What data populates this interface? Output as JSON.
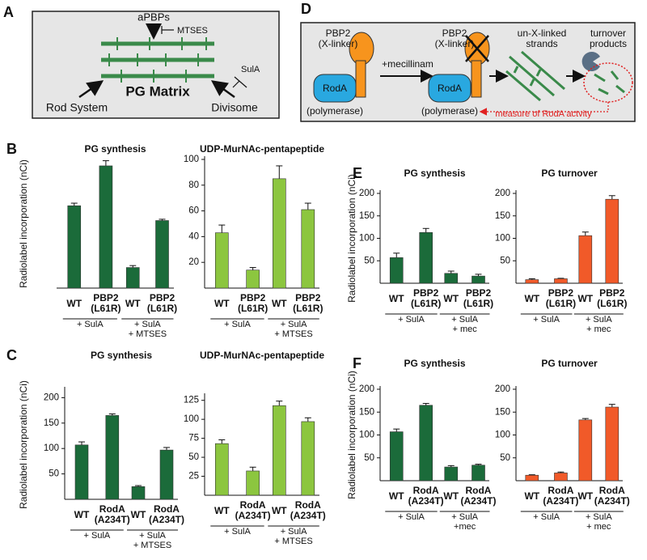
{
  "diagram_a": {
    "label": "A",
    "top": "aPBPs",
    "inhibitor_top": "MTSES",
    "center": "PG Matrix",
    "left": "Rod System",
    "right": "Divisome",
    "inhibitor_right": "SulA"
  },
  "diagram_d": {
    "label": "D",
    "pbp2_name_1": "PBP2",
    "pbp2_role_1": "(X-linker)",
    "roda_1": "RodA",
    "polymerase_1": "(polymerase)",
    "arrow_label": "+mecillinam",
    "pbp2_name_2": "PBP2",
    "pbp2_role_2": "(X-linker)",
    "roda_2": "RodA",
    "polymerase_2": "(polymerase)",
    "strands_1": "un-X-linked",
    "strands_2": "strands",
    "products_1": "turnover",
    "products_2": "products",
    "measure": "measure of RodA actvity"
  },
  "chart_data": [
    {
      "type": "bar",
      "panel": "B",
      "title": "PG synthesis",
      "ylabel": "Radiolabel incorporation (nCi)",
      "categories": [
        "WT",
        "PBP2\n(L61R)",
        "WT",
        "PBP2\n(L61R)"
      ],
      "group_labels": [
        "+ SulA",
        "+ SulA\n+ MTSES"
      ],
      "values": [
        128,
        190,
        32,
        105
      ],
      "errors": [
        4,
        8,
        3,
        2
      ],
      "color": "#1b6b3a",
      "ylim": [
        0,
        200
      ]
    },
    {
      "type": "bar",
      "title": "UDP-MurNAc-pentapeptide",
      "categories": [
        "WT",
        "PBP2\n(L61R)",
        "WT",
        "PBP2\n(L61R)"
      ],
      "group_labels": [
        "+ SulA",
        "+ SulA\n+ MTSES"
      ],
      "values": [
        43,
        14,
        85,
        61
      ],
      "errors": [
        6,
        2,
        10,
        5
      ],
      "color": "#8cc63f",
      "ylim": [
        0,
        100
      ],
      "yticks": [
        20,
        40,
        60,
        80,
        100
      ]
    },
    {
      "type": "bar",
      "panel": "C",
      "title": "PG synthesis",
      "ylabel": "Radiolabel incorporation (nCi)",
      "categories": [
        "WT",
        "RodA\n(A234T)",
        "WT",
        "RodA\n(A234T)"
      ],
      "group_labels": [
        "+ SulA",
        "+ SulA\n+ MTSES"
      ],
      "values": [
        107,
        165,
        25,
        97
      ],
      "errors": [
        6,
        3,
        2,
        5
      ],
      "color": "#1b6b3a",
      "ylim": [
        0,
        215
      ],
      "yticks": [
        50,
        100,
        150,
        200
      ]
    },
    {
      "type": "bar",
      "title": "UDP-MurNAc-pentapeptide",
      "categories": [
        "WT",
        "RodA\n(A234T)",
        "WT",
        "RodA\n(A234T)"
      ],
      "group_labels": [
        "+ SulA",
        "+ SulA\n+ MTSES"
      ],
      "values": [
        68,
        32,
        118,
        97
      ],
      "errors": [
        5,
        5,
        6,
        5
      ],
      "color": "#8cc63f",
      "ylim": [
        0,
        130
      ],
      "yticks": [
        25,
        50,
        75,
        100,
        125
      ]
    },
    {
      "type": "bar",
      "panel": "E",
      "title": "PG synthesis",
      "ylabel": "Radiolabel incorporation (nCi)",
      "categories": [
        "WT",
        "PBP2\n(L61R)",
        "WT",
        "PBP2\n(L61R)"
      ],
      "group_labels": [
        "+ SulA",
        "+ SulA\n+ mec"
      ],
      "values": [
        57,
        113,
        22,
        16
      ],
      "errors": [
        10,
        9,
        5,
        4
      ],
      "color": "#1b6b3a",
      "ylim": [
        0,
        200
      ],
      "yticks": [
        50,
        100,
        150,
        200
      ]
    },
    {
      "type": "bar",
      "title": "PG turnover",
      "categories": [
        "WT",
        "PBP2\n(L61R)",
        "WT",
        "PBP2\n(L61R)"
      ],
      "group_labels": [
        "+ SulA",
        "+ SulA\n+ mec"
      ],
      "values": [
        8,
        10,
        106,
        187
      ],
      "errors": [
        2,
        1,
        8,
        8
      ],
      "color": "#f15a29",
      "ylim": [
        0,
        200
      ],
      "yticks": [
        50,
        100,
        150,
        200
      ]
    },
    {
      "type": "bar",
      "panel": "F",
      "title": "PG synthesis",
      "ylabel": "Radiolabel incorporation (nCi)",
      "categories": [
        "WT",
        "RodA\n(A234T)",
        "WT",
        "RodA\n(A234T)"
      ],
      "group_labels": [
        "+ SulA",
        "+ SulA\n+mec"
      ],
      "values": [
        107,
        165,
        30,
        34
      ],
      "errors": [
        6,
        4,
        3,
        2
      ],
      "color": "#1b6b3a",
      "ylim": [
        0,
        200
      ],
      "yticks": [
        50,
        100,
        150,
        200
      ]
    },
    {
      "type": "bar",
      "title": "PG turnover",
      "categories": [
        "WT",
        "RodA\n(A234T)",
        "WT",
        "RodA\n(A234T)"
      ],
      "group_labels": [
        "+ SulA",
        "+ SulA\n+ mec"
      ],
      "values": [
        12,
        17,
        133,
        161
      ],
      "errors": [
        1,
        2,
        3,
        6
      ],
      "color": "#f15a29",
      "ylim": [
        0,
        200
      ],
      "yticks": [
        50,
        100,
        150,
        200
      ]
    }
  ]
}
